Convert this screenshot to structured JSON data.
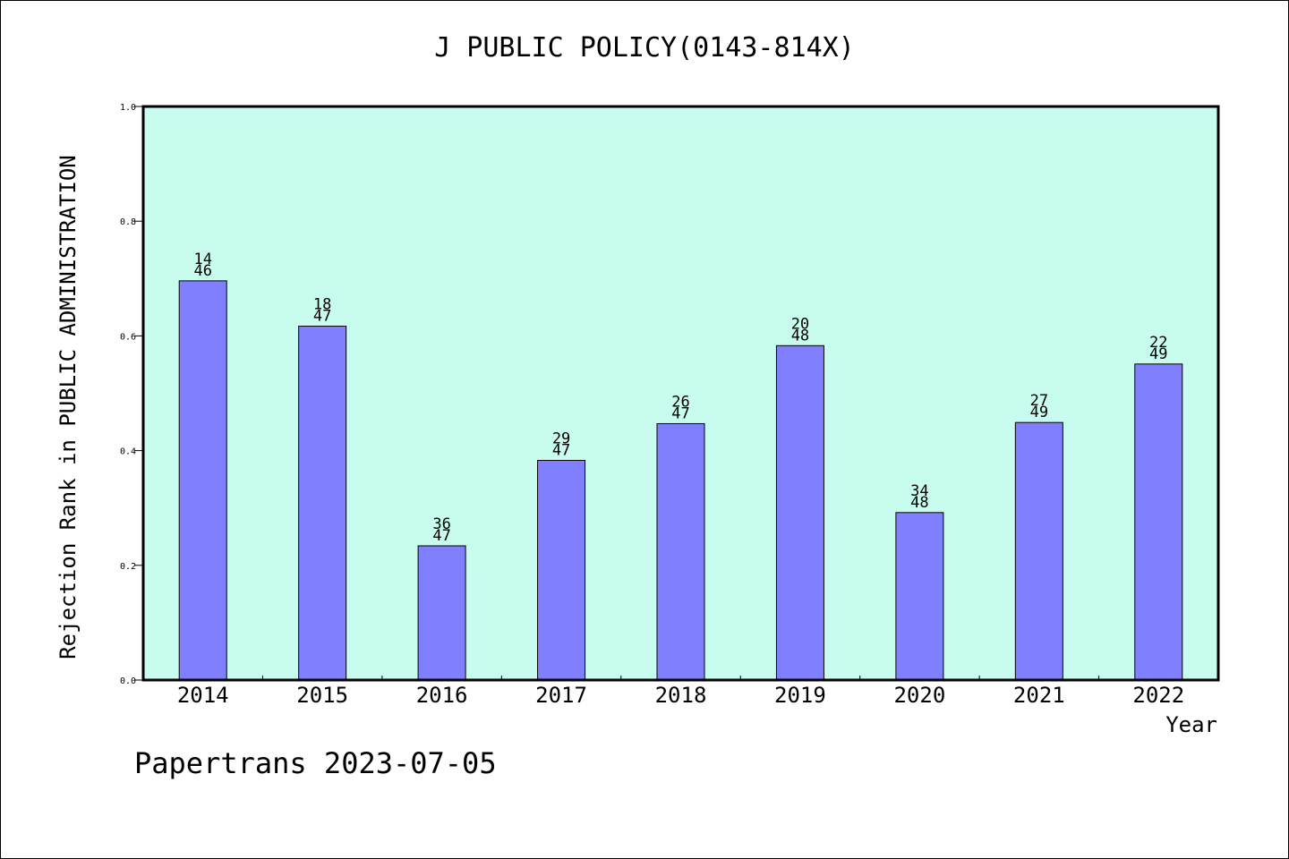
{
  "chart_data": {
    "type": "bar",
    "title": "J PUBLIC POLICY(0143-814X)",
    "xlabel": "Year",
    "ylabel": "Rejection Rank in PUBLIC ADMINISTRATION",
    "ylim": [
      0,
      1.0
    ],
    "yticks": [
      "0.0",
      "0.2",
      "0.4",
      "0.6",
      "0.8",
      "1.0"
    ],
    "grid": false,
    "categories": [
      "2014",
      "2015",
      "2016",
      "2017",
      "2018",
      "2019",
      "2020",
      "2021",
      "2022"
    ],
    "values": [
      0.696,
      0.617,
      0.234,
      0.383,
      0.447,
      0.583,
      0.292,
      0.449,
      0.551
    ],
    "labels": [
      [
        "14",
        "46"
      ],
      [
        "18",
        "47"
      ],
      [
        "36",
        "47"
      ],
      [
        "29",
        "47"
      ],
      [
        "26",
        "47"
      ],
      [
        "20",
        "48"
      ],
      [
        "34",
        "48"
      ],
      [
        "27",
        "49"
      ],
      [
        "22",
        "49"
      ]
    ],
    "colors": {
      "plot_background": "#c8fcee",
      "bar_fill": "#8080ff",
      "bar_stroke": "#000000",
      "axis": "#000000"
    }
  },
  "footer": {
    "credit": "Papertrans 2023-07-05"
  }
}
